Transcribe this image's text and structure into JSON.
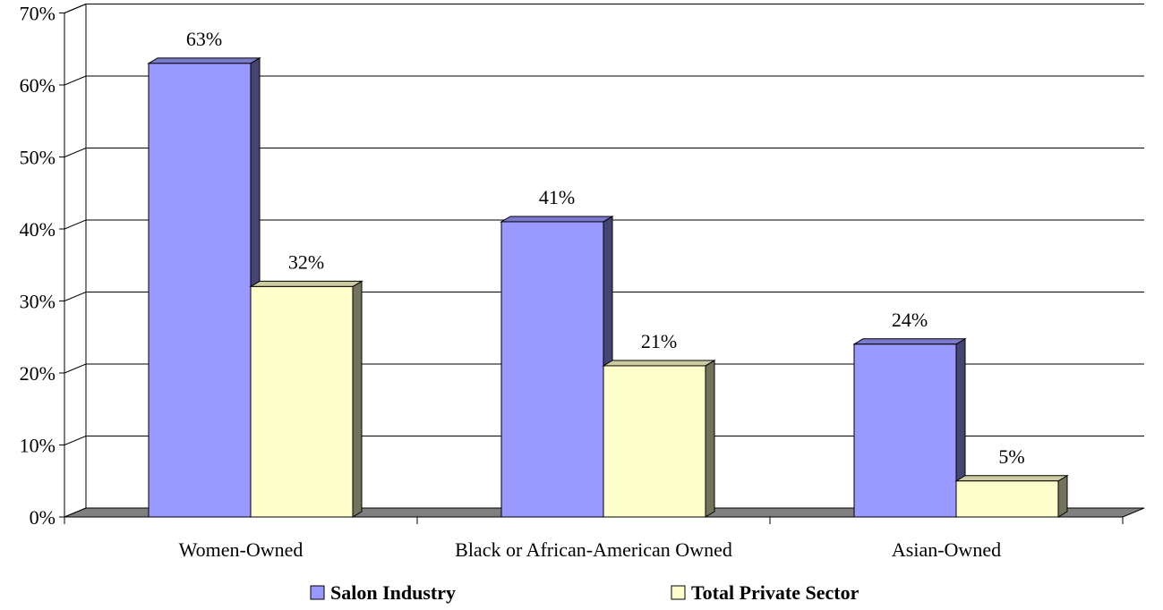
{
  "chart_data": {
    "type": "bar",
    "categories": [
      "Women-Owned",
      "Black or African-American Owned",
      "Asian-Owned"
    ],
    "series": [
      {
        "name": "Salon Industry",
        "values": [
          63,
          41,
          24
        ],
        "labels": [
          "63%",
          "41%",
          "24%"
        ],
        "color": "#9999ff"
      },
      {
        "name": "Total Private Sector",
        "values": [
          32,
          21,
          5
        ],
        "labels": [
          "32%",
          "21%",
          "5%"
        ],
        "color": "#ffffcc"
      }
    ],
    "ylim": [
      0,
      70
    ],
    "yticks": [
      0,
      10,
      20,
      30,
      40,
      50,
      60,
      70
    ],
    "ytick_labels": [
      "0%",
      "10%",
      "20%",
      "30%",
      "40%",
      "50%",
      "60%",
      "70%"
    ],
    "grid": true,
    "style": "3d-clustered-column",
    "legend_position": "bottom"
  }
}
